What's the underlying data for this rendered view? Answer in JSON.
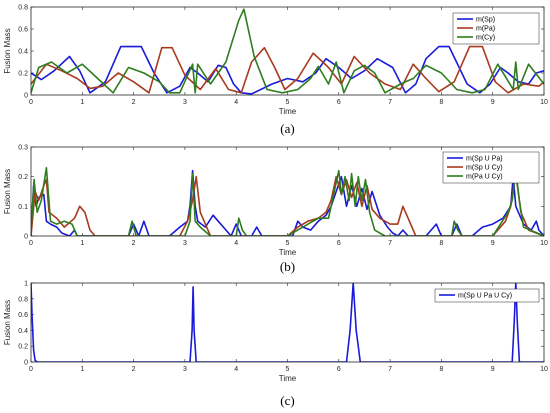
{
  "colors": {
    "blue": "#1a1adb",
    "red": "#a83a1e",
    "green": "#2e7d1e"
  },
  "chart_data": [
    {
      "type": "line",
      "caption": "(a)",
      "xlabel": "Time",
      "ylabel": "Fusion Mass",
      "xlim": [
        0,
        10
      ],
      "ylim": [
        0,
        0.8
      ],
      "xticks": [
        "0",
        "1",
        "2",
        "3",
        "4",
        "5",
        "6",
        "7",
        "8",
        "9",
        "10"
      ],
      "yticks": [
        "0",
        "0.2",
        "0.4",
        "0.6",
        "0.8"
      ],
      "legend": "top-right",
      "series": [
        {
          "name": "m(Sp)",
          "color": "#1a1adb",
          "x": [
            0,
            0.2,
            0.45,
            0.75,
            0.95,
            1.15,
            1.45,
            1.75,
            2.15,
            2.4,
            2.65,
            2.9,
            3.1,
            3.25,
            3.45,
            3.65,
            3.8,
            3.95,
            4.1,
            4.3,
            4.7,
            5.0,
            5.3,
            5.55,
            5.75,
            6.0,
            6.25,
            6.5,
            6.75,
            7.05,
            7.3,
            7.5,
            7.7,
            7.95,
            8.15,
            8.5,
            8.75,
            8.95,
            9.15,
            9.3,
            9.5,
            9.7,
            9.85,
            10
          ],
          "y": [
            0.2,
            0.14,
            0.22,
            0.35,
            0.22,
            0.02,
            0.12,
            0.44,
            0.44,
            0.2,
            0.02,
            0.08,
            0.25,
            0.2,
            0.12,
            0.27,
            0.25,
            0.1,
            0.02,
            0.01,
            0.1,
            0.15,
            0.12,
            0.2,
            0.33,
            0.25,
            0.15,
            0.22,
            0.33,
            0.25,
            0.02,
            0.1,
            0.33,
            0.44,
            0.44,
            0.1,
            0.02,
            0.1,
            0.25,
            0.2,
            0.12,
            0.1,
            0.2,
            0.22
          ]
        },
        {
          "name": "m(Pa)",
          "color": "#a83a1e",
          "x": [
            0,
            0.3,
            0.6,
            0.9,
            1.15,
            1.4,
            1.7,
            2.0,
            2.3,
            2.55,
            2.75,
            3.0,
            3.3,
            3.6,
            3.85,
            4.1,
            4.3,
            4.55,
            4.75,
            4.95,
            5.2,
            5.5,
            5.8,
            6.05,
            6.3,
            6.6,
            6.9,
            7.2,
            7.45,
            7.7,
            7.95,
            8.25,
            8.55,
            8.8,
            9.05,
            9.3,
            9.6,
            9.9,
            10
          ],
          "y": [
            0.1,
            0.28,
            0.22,
            0.15,
            0.06,
            0.08,
            0.2,
            0.12,
            0.02,
            0.43,
            0.43,
            0.18,
            0.05,
            0.24,
            0.05,
            0.02,
            0.3,
            0.43,
            0.25,
            0.05,
            0.15,
            0.38,
            0.25,
            0.1,
            0.35,
            0.2,
            0.1,
            0.05,
            0.28,
            0.15,
            0.03,
            0.12,
            0.44,
            0.44,
            0.12,
            0.02,
            0.1,
            0.08,
            0.12
          ]
        },
        {
          "name": "m(Cy)",
          "color": "#2e7d1e",
          "x": [
            0,
            0.15,
            0.4,
            0.7,
            1.0,
            1.3,
            1.6,
            1.9,
            2.2,
            2.5,
            2.7,
            2.9,
            3.15,
            3.2,
            3.25,
            3.5,
            3.8,
            4.05,
            4.15,
            4.35,
            4.6,
            4.9,
            5.2,
            5.45,
            5.6,
            5.8,
            5.95,
            6.1,
            6.3,
            6.5,
            6.7,
            6.9,
            7.2,
            7.45,
            7.7,
            8.0,
            8.3,
            8.6,
            8.85,
            9.1,
            9.4,
            9.45,
            9.5,
            9.7,
            10
          ],
          "y": [
            0.02,
            0.25,
            0.3,
            0.2,
            0.28,
            0.15,
            0.02,
            0.25,
            0.2,
            0.12,
            0.02,
            0.02,
            0.28,
            0.02,
            0.28,
            0.1,
            0.3,
            0.68,
            0.78,
            0.35,
            0.05,
            0.02,
            0.05,
            0.15,
            0.26,
            0.1,
            0.3,
            0.02,
            0.22,
            0.27,
            0.2,
            0.02,
            0.1,
            0.15,
            0.27,
            0.2,
            0.05,
            0.02,
            0.05,
            0.28,
            0.05,
            0.3,
            0.05,
            0.28,
            0.1
          ]
        }
      ]
    },
    {
      "type": "line",
      "caption": "(b)",
      "xlabel": "Time",
      "ylabel": "Fusion Mass",
      "xlim": [
        0,
        10
      ],
      "ylim": [
        0,
        0.3
      ],
      "xticks": [
        "0",
        "1",
        "2",
        "3",
        "4",
        "5",
        "6",
        "7",
        "8",
        "9",
        "10"
      ],
      "yticks": [
        "0",
        "0.1",
        "0.2",
        "0.3"
      ],
      "legend": "top-right",
      "series": [
        {
          "name": "m(Sp U Pa)",
          "color": "#1a1adb",
          "x": [
            0,
            0.05,
            0.1,
            0.15,
            0.25,
            0.3,
            0.38,
            0.5,
            0.6,
            0.75,
            0.85,
            0.9,
            1.0,
            1.1,
            1.3,
            1.9,
            2.0,
            2.1,
            2.2,
            2.3,
            2.5,
            2.7,
            2.9,
            3.05,
            3.1,
            3.15,
            3.2,
            3.25,
            3.4,
            3.55,
            3.65,
            3.75,
            3.9,
            4.0,
            4.1,
            4.3,
            4.4,
            4.5,
            4.7,
            4.9,
            5.1,
            5.2,
            5.3,
            5.45,
            5.6,
            5.75,
            5.85,
            5.95,
            6.05,
            6.15,
            6.25,
            6.35,
            6.45,
            6.55,
            6.65,
            6.8,
            6.95,
            7.05,
            7.15,
            7.25,
            7.35,
            7.7,
            7.8,
            7.9,
            8.0,
            8.2,
            8.3,
            8.4,
            8.6,
            8.8,
            9.0,
            9.2,
            9.35,
            9.4,
            9.45,
            9.6,
            9.75,
            9.85,
            9.9,
            10
          ],
          "y": [
            0,
            0.17,
            0.1,
            0.13,
            0.14,
            0.05,
            0.04,
            0.03,
            0.01,
            0,
            0.02,
            0,
            0,
            0,
            0,
            0,
            0.04,
            0,
            0.05,
            0,
            0,
            0,
            0.03,
            0.05,
            0.1,
            0.22,
            0.1,
            0.05,
            0.03,
            0.07,
            0.05,
            0.03,
            0,
            0.04,
            0,
            0,
            0.03,
            0,
            0,
            0,
            0,
            0.05,
            0.03,
            0.02,
            0.05,
            0.07,
            0.1,
            0.15,
            0.2,
            0.1,
            0.17,
            0.1,
            0.16,
            0.09,
            0.15,
            0.07,
            0.03,
            0.01,
            0,
            0.02,
            0,
            0,
            0.02,
            0.04,
            0,
            0,
            0.04,
            0,
            0,
            0.03,
            0.04,
            0.06,
            0.1,
            0.2,
            0.1,
            0.04,
            0.02,
            0.05,
            0.02,
            0
          ]
        },
        {
          "name": "m(Sp U Cy)",
          "color": "#a83a1e",
          "x": [
            0,
            0.08,
            0.15,
            0.25,
            0.3,
            0.35,
            0.5,
            0.65,
            0.85,
            0.95,
            1.05,
            1.15,
            1.25,
            1.5,
            2.9,
            3.05,
            3.15,
            3.22,
            3.3,
            3.5,
            5.0,
            5.2,
            5.4,
            5.6,
            5.75,
            5.85,
            5.95,
            6.05,
            6.15,
            6.25,
            6.35,
            6.45,
            6.55,
            6.65,
            6.8,
            7.0,
            7.15,
            7.25,
            7.35,
            7.5,
            9.0,
            9.25,
            9.35,
            9.45,
            9.55,
            9.7,
            10
          ],
          "y": [
            0,
            0.15,
            0.12,
            0.17,
            0.19,
            0.08,
            0.06,
            0.03,
            0.06,
            0.1,
            0.08,
            0.02,
            0,
            0,
            0,
            0.05,
            0.12,
            0.2,
            0.08,
            0,
            0,
            0.03,
            0.05,
            0.06,
            0.08,
            0.12,
            0.2,
            0.14,
            0.19,
            0.13,
            0.18,
            0.1,
            0.17,
            0.09,
            0.06,
            0.04,
            0.04,
            0.1,
            0.06,
            0,
            0,
            0.05,
            0.1,
            0.21,
            0.08,
            0.02,
            0
          ]
        },
        {
          "name": "m(Pa U Cy)",
          "color": "#2e7d1e",
          "x": [
            0,
            0.06,
            0.12,
            0.2,
            0.3,
            0.38,
            0.5,
            0.65,
            0.8,
            0.9,
            1.5,
            1.9,
            1.97,
            2.05,
            2.5,
            3.0,
            3.1,
            3.15,
            3.2,
            3.3,
            3.5,
            4.0,
            4.05,
            4.12,
            4.2,
            4.6,
            5.0,
            5.3,
            5.6,
            5.8,
            5.95,
            6.0,
            6.05,
            6.12,
            6.2,
            6.25,
            6.32,
            6.38,
            6.45,
            6.52,
            6.6,
            6.7,
            6.9,
            7.5,
            8.2,
            8.25,
            8.32,
            8.4,
            9.0,
            9.3,
            9.38,
            9.45,
            9.52,
            9.6,
            10
          ],
          "y": [
            0.02,
            0.19,
            0.08,
            0.12,
            0.23,
            0.05,
            0.04,
            0.05,
            0.04,
            0,
            0,
            0,
            0.05,
            0,
            0,
            0,
            0.05,
            0.21,
            0.05,
            0.03,
            0,
            0,
            0.06,
            0.02,
            0,
            0,
            0,
            0.03,
            0.06,
            0.06,
            0.18,
            0.22,
            0.14,
            0.2,
            0.12,
            0.21,
            0.1,
            0.2,
            0.12,
            0.19,
            0.08,
            0.02,
            0,
            0,
            0,
            0.05,
            0.02,
            0,
            0,
            0.08,
            0.12,
            0.22,
            0.12,
            0.03,
            0
          ]
        }
      ]
    },
    {
      "type": "line",
      "caption": "(c)",
      "xlabel": "Time",
      "ylabel": "Fusion Mass",
      "xlim": [
        0,
        10
      ],
      "ylim": [
        0,
        1
      ],
      "xticks": [
        "0",
        "1",
        "2",
        "3",
        "4",
        "5",
        "6",
        "7",
        "8",
        "9",
        "10"
      ],
      "yticks": [
        "0",
        "0.2",
        "0.4",
        "0.6",
        "0.8",
        "1"
      ],
      "legend": "top-right",
      "series": [
        {
          "name": "m(Sp U Pa U Cy)",
          "color": "#1a1adb",
          "x": [
            0,
            0.02,
            0.05,
            0.08,
            0.12,
            3.1,
            3.14,
            3.16,
            3.18,
            3.22,
            6.15,
            6.22,
            6.28,
            6.34,
            6.42,
            9.38,
            9.42,
            9.45,
            9.48,
            9.52,
            10
          ],
          "y": [
            1,
            0.6,
            0.15,
            0.02,
            0,
            0,
            0.4,
            0.95,
            0.4,
            0,
            0,
            0.4,
            1,
            0.4,
            0,
            0,
            0.5,
            1,
            0.5,
            0,
            0
          ]
        }
      ]
    }
  ]
}
